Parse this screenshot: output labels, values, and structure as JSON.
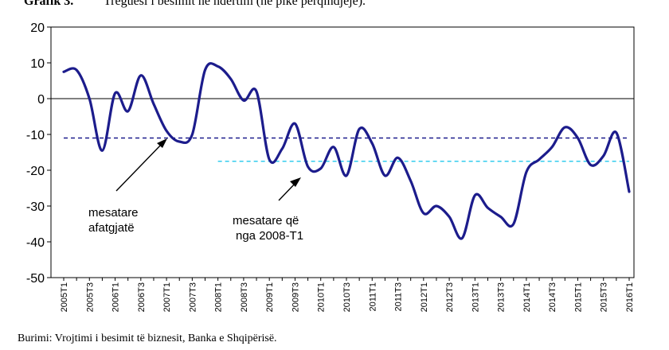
{
  "header": {
    "number": "Grafik 3.",
    "title": "Treguesi i besimit në ndërtim (në pikë përqindjeje)."
  },
  "footer": {
    "source": "Burimi: Vrojtimi i besimit të biznesit, Banka e Shqipërisë."
  },
  "colors": {
    "series": "#1c1c8c",
    "long_term_avg": "#1c1c8c",
    "avg_since_2008": "#33ccee",
    "axis": "#000000"
  },
  "chart_data": {
    "type": "line",
    "title": "Treguesi i besimit në ndërtim (në pikë përqindjeje).",
    "ylim": [
      -50,
      20
    ],
    "yticks": [
      20,
      10,
      0,
      -10,
      -20,
      -30,
      -40,
      -50
    ],
    "grid": false,
    "x": [
      "2005T1",
      "2005T2",
      "2005T3",
      "2005T4",
      "2006T1",
      "2006T2",
      "2006T3",
      "2006T4",
      "2007T1",
      "2007T2",
      "2007T3",
      "2007T4",
      "2008T1",
      "2008T2",
      "2008T3",
      "2008T4",
      "2009T1",
      "2009T2",
      "2009T3",
      "2009T4",
      "2010T1",
      "2010T2",
      "2010T3",
      "2010T4",
      "2011T1",
      "2011T2",
      "2011T3",
      "2011T4",
      "2012T1",
      "2012T2",
      "2012T3",
      "2012T4",
      "2013T1",
      "2013T2",
      "2013T3",
      "2013T4",
      "2014T1",
      "2014T2",
      "2014T3",
      "2014T4",
      "2015T1",
      "2015T2",
      "2015T3",
      "2015T4",
      "2016T1"
    ],
    "xtick_labels": [
      "2005T1",
      "2005T3",
      "2006T1",
      "2006T3",
      "2007T1",
      "2007T3",
      "2008T1",
      "2008T3",
      "2009T1",
      "2009T3",
      "2010T1",
      "2010T3",
      "2011T1",
      "2011T3",
      "2012T1",
      "2012T3",
      "2013T1",
      "2013T3",
      "2014T1",
      "2014T3",
      "2015T1",
      "2015T3",
      "2016T1"
    ],
    "series": [
      {
        "values": [
          7.5,
          8.0,
          0,
          -14.5,
          1.5,
          -3.5,
          6.5,
          -1.5,
          -9.0,
          -12.0,
          -10.0,
          8.0,
          9.0,
          5.5,
          -0.5,
          2.0,
          -17.0,
          -14.0,
          -7.0,
          -19.0,
          -19.5,
          -13.5,
          -21.5,
          -8.5,
          -12.5,
          -21.5,
          -16.5,
          -23.0,
          -32.0,
          -30.0,
          -33.0,
          -39.0,
          -27.0,
          -30.5,
          -33.0,
          -35.0,
          -20.5,
          -17.0,
          -13.5,
          -8.0,
          -11.0,
          -18.5,
          -16.0,
          -9.5,
          -26.0
        ]
      }
    ],
    "reference_lines": [
      {
        "label": "mesatare afatgjatë",
        "value": -11,
        "x_start": "2005T1",
        "x_end": "2016T1",
        "style": "dashed"
      },
      {
        "label": "mesatare që nga 2008-T1",
        "value": -17.5,
        "x_start": "2008T1",
        "x_end": "2016T1",
        "style": "dashed"
      }
    ],
    "annotations": [
      {
        "lines": [
          "mesatare",
          "afatgjatë"
        ]
      },
      {
        "lines": [
          "mesatare që",
          "nga 2008-T1"
        ]
      }
    ]
  }
}
